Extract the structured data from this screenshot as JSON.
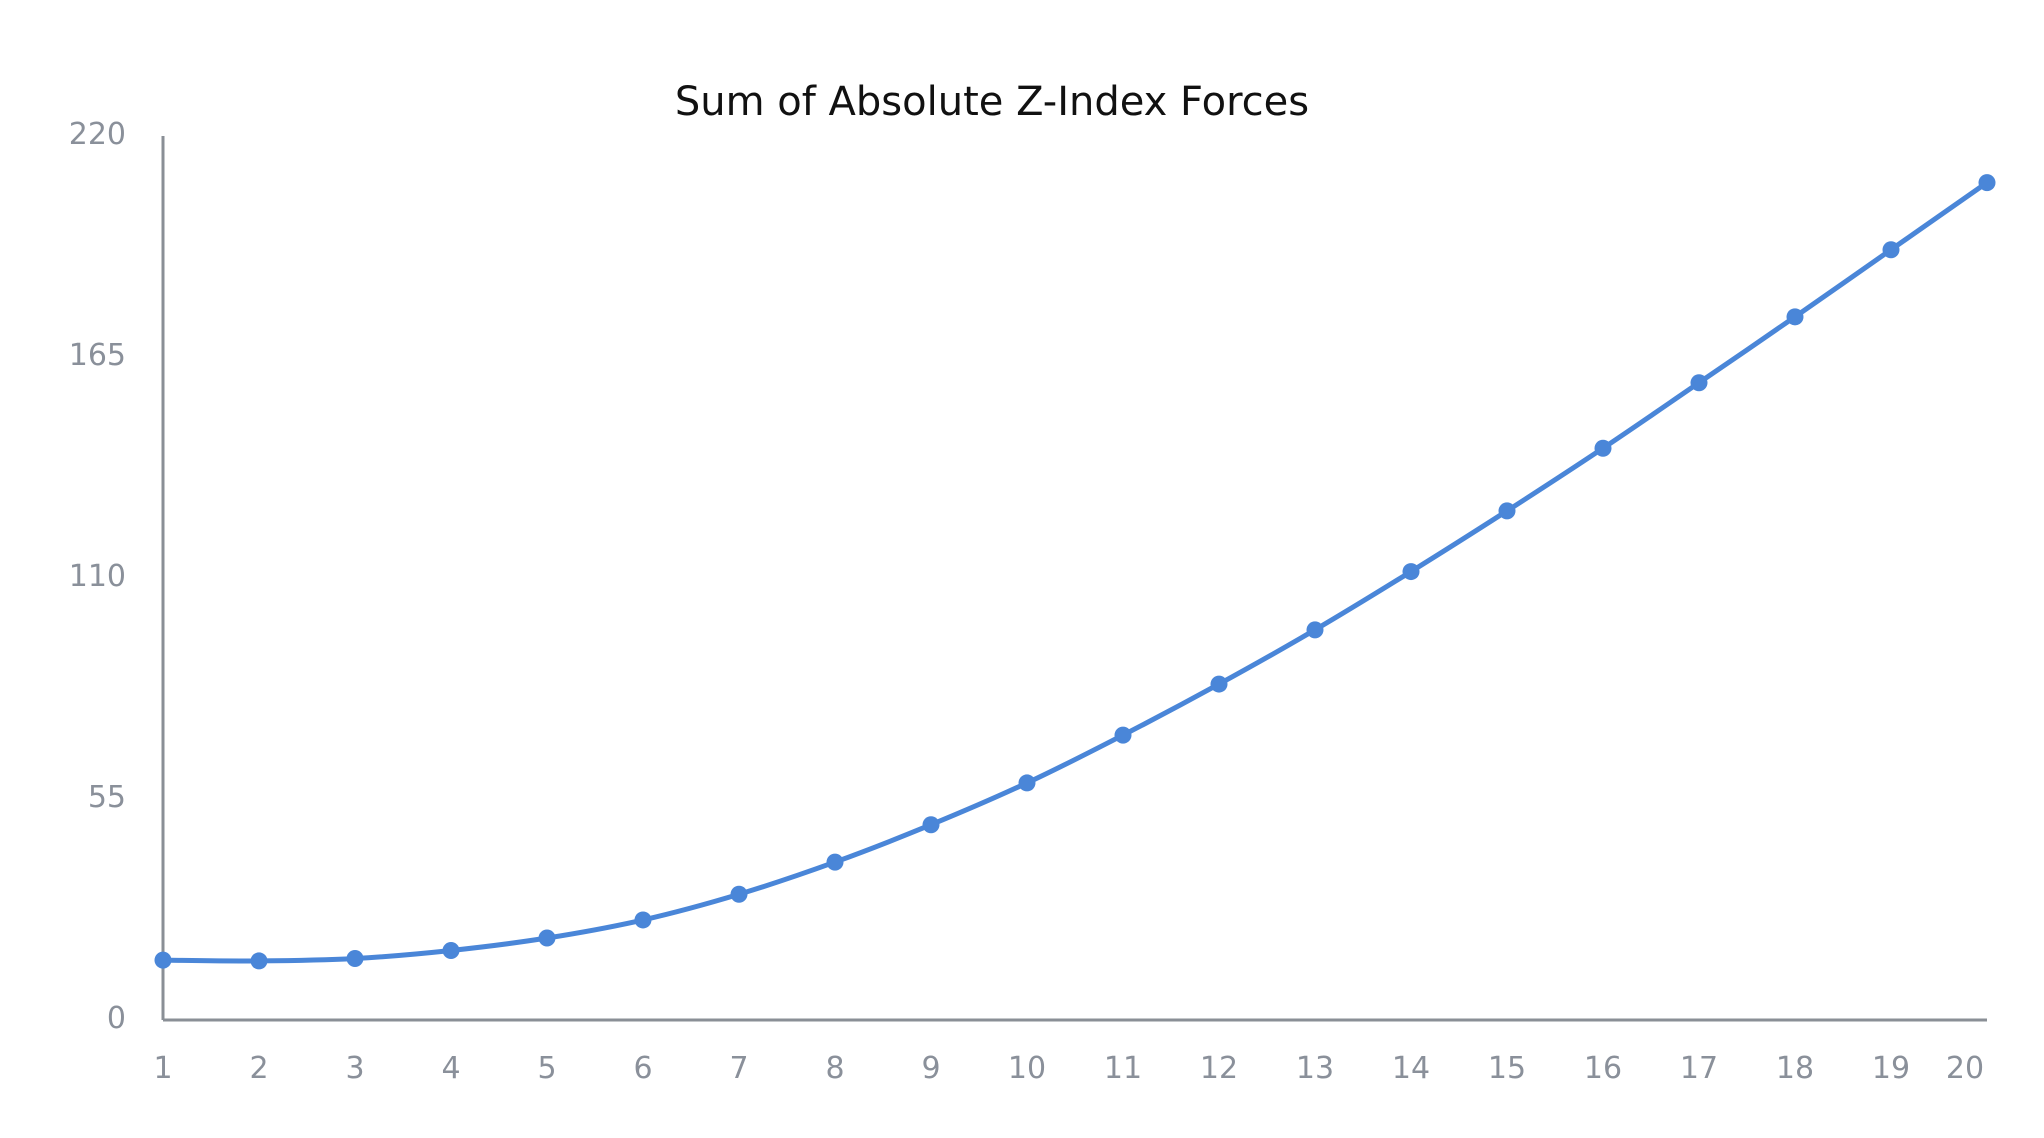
{
  "chart_data": {
    "type": "line",
    "title": "Sum of Absolute Z-Index Forces",
    "xlabel": "",
    "ylabel": "",
    "x": [
      1,
      2,
      3,
      4,
      5,
      6,
      7,
      8,
      9,
      10,
      11,
      12,
      13,
      14,
      15,
      16,
      17,
      18,
      19,
      20
    ],
    "x_ticks": [
      "1",
      "2",
      "3",
      "4",
      "5",
      "6",
      "7",
      "8",
      "9",
      "10",
      "11",
      "12",
      "13",
      "14",
      "15",
      "16",
      "17",
      "18",
      "19",
      "20"
    ],
    "y_ticks": [
      "0",
      "55",
      "110",
      "165",
      "220"
    ],
    "ylim": [
      0,
      220
    ],
    "xlim": [
      1,
      20
    ],
    "grid": false,
    "legend": "none",
    "series": [
      {
        "color": "#4a86d8",
        "values": [
          14.9,
          14.7,
          15.3,
          17.3,
          20.4,
          24.9,
          31.3,
          39.3,
          48.6,
          59.0,
          70.9,
          83.6,
          97.1,
          111.6,
          126.7,
          142.3,
          158.6,
          175.0,
          191.7,
          208.4
        ]
      }
    ]
  }
}
